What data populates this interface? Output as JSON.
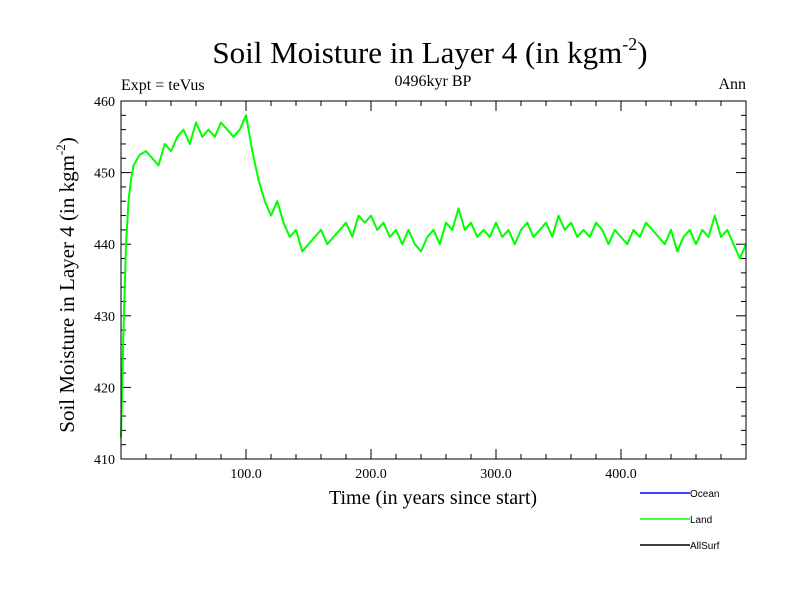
{
  "chart_data": {
    "type": "line",
    "title": "Soil Moisture in Layer 4 (in kgm",
    "title_sup": "-2",
    "title_close": ")",
    "subtitle_left": "Expt = teVus",
    "subtitle_center": "0496kyr BP",
    "subtitle_right": "Ann",
    "xlabel": "Time (in years since start)",
    "ylabel": "Soil Moisture in Layer 4 (in kgm",
    "ylabel_sup": "-2",
    "ylabel_close": ")",
    "xlim": [
      0,
      500
    ],
    "ylim": [
      410,
      460
    ],
    "x_ticks": [
      100,
      200,
      300,
      400
    ],
    "x_tick_labels": [
      "100.0",
      "200.0",
      "300.0",
      "400.0"
    ],
    "y_ticks": [
      410,
      420,
      430,
      440,
      450,
      460
    ],
    "y_tick_labels": [
      "410",
      "420",
      "430",
      "440",
      "450",
      "460"
    ],
    "legend": [
      {
        "name": "Ocean",
        "color": "#0000ff"
      },
      {
        "name": "Land",
        "color": "#00ff00"
      },
      {
        "name": "AllSurf",
        "color": "#000000"
      }
    ],
    "series": [
      {
        "name": "Land",
        "color": "#00ff00",
        "x": [
          0,
          2,
          4,
          6,
          8,
          10,
          15,
          20,
          25,
          30,
          35,
          40,
          45,
          50,
          55,
          60,
          65,
          70,
          75,
          80,
          85,
          90,
          95,
          100,
          105,
          110,
          115,
          120,
          125,
          130,
          135,
          140,
          145,
          150,
          155,
          160,
          165,
          170,
          175,
          180,
          185,
          190,
          195,
          200,
          205,
          210,
          215,
          220,
          225,
          230,
          235,
          240,
          245,
          250,
          255,
          260,
          265,
          270,
          275,
          280,
          285,
          290,
          295,
          300,
          305,
          310,
          315,
          320,
          325,
          330,
          335,
          340,
          345,
          350,
          355,
          360,
          365,
          370,
          375,
          380,
          385,
          390,
          395,
          400,
          405,
          410,
          415,
          420,
          425,
          430,
          435,
          440,
          445,
          450,
          455,
          460,
          465,
          470,
          475,
          480,
          485,
          490,
          495,
          500
        ],
        "y": [
          413,
          428,
          440,
          446,
          449,
          451,
          452.5,
          453,
          452,
          451,
          454,
          453,
          455,
          456,
          454,
          457,
          455,
          456,
          455,
          457,
          456,
          455,
          456,
          458,
          453,
          449,
          446,
          444,
          446,
          443,
          441,
          442,
          439,
          440,
          441,
          442,
          440,
          441,
          442,
          443,
          441,
          444,
          443,
          444,
          442,
          443,
          441,
          442,
          440,
          442,
          440,
          439,
          441,
          442,
          440,
          443,
          442,
          445,
          442,
          443,
          441,
          442,
          441,
          443,
          441,
          442,
          440,
          442,
          443,
          441,
          442,
          443,
          441,
          444,
          442,
          443,
          441,
          442,
          441,
          443,
          442,
          440,
          442,
          441,
          440,
          442,
          441,
          443,
          442,
          441,
          440,
          442,
          439,
          441,
          442,
          440,
          442,
          441,
          444,
          441,
          442,
          440,
          438,
          440
        ]
      }
    ]
  }
}
